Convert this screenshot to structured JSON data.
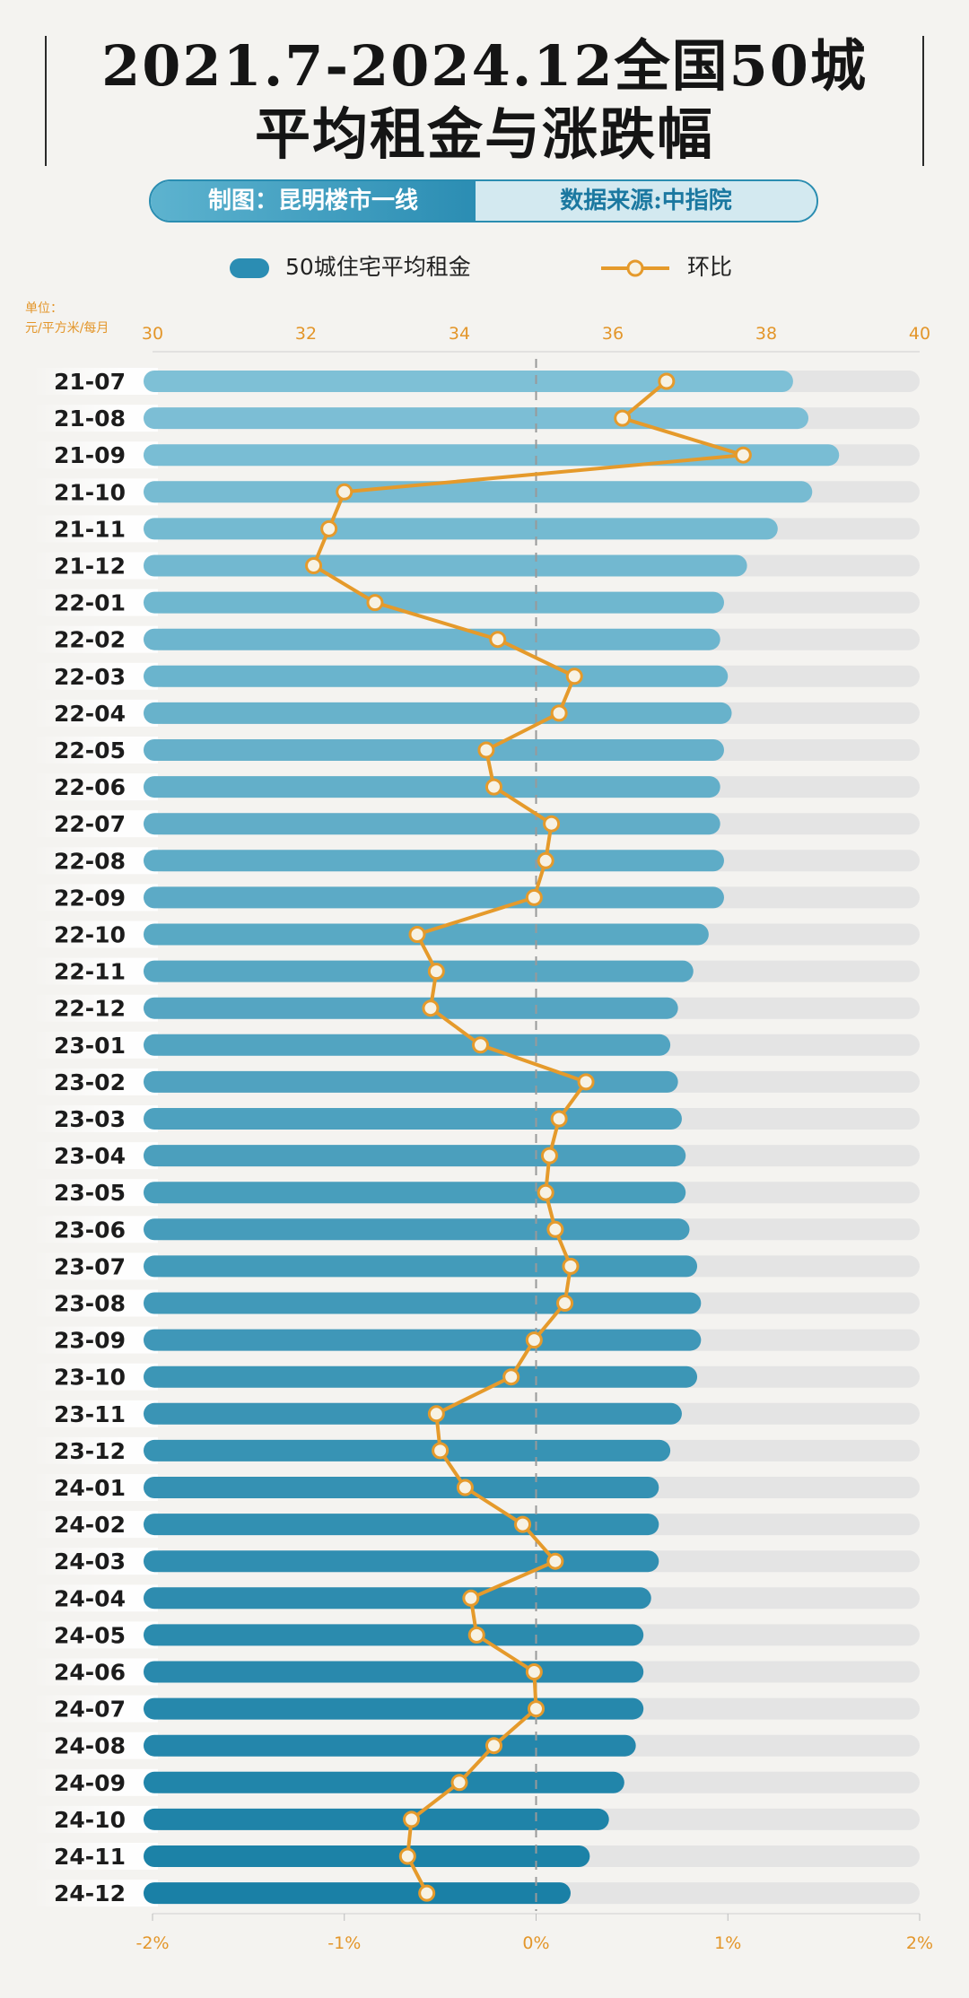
{
  "title_line1": "2021.7-2024.12全国50城",
  "title_line2": "平均租金与涨跌幅",
  "credit_left": "制图：昆明楼市一线",
  "credit_right": "数据来源:中指院",
  "unit_line1": "单位：",
  "unit_line2": "元/平方米/每月",
  "colors": {
    "bar_light": "#7ec0d6",
    "bar_dark": "#1f86aa",
    "track": "#e4e4e4",
    "line": "#e59a2b",
    "marker_fill": "#f7f2e4",
    "axis_text": "#e3962a",
    "zero_line": "#999999"
  },
  "chart_data": {
    "type": "bar",
    "categories": [
      "21-07",
      "21-08",
      "21-09",
      "21-10",
      "21-11",
      "21-12",
      "22-01",
      "22-02",
      "22-03",
      "22-04",
      "22-05",
      "22-06",
      "22-07",
      "22-08",
      "22-09",
      "22-10",
      "22-11",
      "22-12",
      "23-01",
      "23-02",
      "23-03",
      "23-04",
      "23-05",
      "23-06",
      "23-07",
      "23-08",
      "23-09",
      "23-10",
      "23-11",
      "23-12",
      "24-01",
      "24-02",
      "24-03",
      "24-04",
      "24-05",
      "24-06",
      "24-07",
      "24-08",
      "24-09",
      "24-10",
      "24-11",
      "24-12"
    ],
    "series": [
      {
        "name": "50城住宅平均租金",
        "type": "bar",
        "axis": "top",
        "values": [
          38.35,
          38.55,
          38.95,
          38.6,
          38.15,
          37.75,
          37.45,
          37.4,
          37.5,
          37.55,
          37.45,
          37.4,
          37.4,
          37.45,
          37.45,
          37.25,
          37.05,
          36.85,
          36.75,
          36.85,
          36.9,
          36.95,
          36.95,
          37.0,
          37.1,
          37.15,
          37.15,
          37.1,
          36.9,
          36.75,
          36.6,
          36.6,
          36.6,
          36.5,
          36.4,
          36.4,
          36.4,
          36.3,
          36.15,
          35.95,
          35.7,
          35.45
        ]
      },
      {
        "name": "环比",
        "type": "line",
        "axis": "bottom",
        "values": [
          0.68,
          0.45,
          1.08,
          -1.0,
          -1.08,
          -1.16,
          -0.84,
          -0.2,
          0.2,
          0.12,
          -0.26,
          -0.22,
          0.08,
          0.05,
          -0.01,
          -0.62,
          -0.52,
          -0.55,
          -0.29,
          0.26,
          0.12,
          0.07,
          0.05,
          0.1,
          0.18,
          0.15,
          -0.01,
          -0.13,
          -0.52,
          -0.5,
          -0.37,
          -0.07,
          0.1,
          -0.34,
          -0.31,
          -0.01,
          0.0,
          -0.22,
          -0.4,
          -0.65,
          -0.67,
          -0.57
        ]
      }
    ],
    "top_axis": {
      "ticks": [
        "30",
        "32",
        "34",
        "36",
        "38",
        "40"
      ],
      "range": [
        30,
        40
      ]
    },
    "bottom_axis": {
      "ticks": [
        "-2%",
        "-1%",
        "0%",
        "1%",
        "2%"
      ],
      "range": [
        -2,
        2
      ]
    },
    "legend_position": "top"
  }
}
